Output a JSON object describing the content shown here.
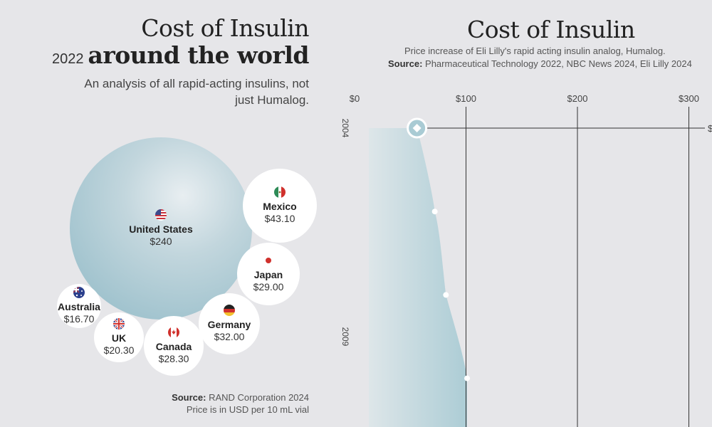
{
  "left": {
    "title_line1": "Cost of Insulin",
    "title_year": "2022",
    "title_line2": "around the world",
    "subtitle": "An analysis of all rapid-acting insulins, not just Humalog.",
    "source_label": "Source:",
    "source_value": "RAND Corporation 2024",
    "note": "Price is in USD per 10 mL vial"
  },
  "right": {
    "title": "Cost of Insulin",
    "subtitle": "Price increase of Eli Lilly's rapid acting insulin analog, Humalog.",
    "source_label": "Source:",
    "source_value": "Pharmaceutical Technology 2022, NBC News 2024, Eli Lilly 2024"
  },
  "colors": {
    "background": "#e6e6e9",
    "us_bubble": "#8fb9c6",
    "bubble": "#ffffff",
    "area_fill": "#a9cbd4",
    "grid": "#333333"
  },
  "chart_data": [
    {
      "type": "bubble",
      "categories": [
        "United States",
        "Mexico",
        "Japan",
        "Germany",
        "Canada",
        "UK",
        "Australia"
      ],
      "values": [
        240,
        43.1,
        29.0,
        32.0,
        28.3,
        20.3,
        16.7
      ],
      "labels": [
        "$240",
        "$43.10",
        "$29.00",
        "$32.00",
        "$28.30",
        "$20.30",
        "$16.70"
      ],
      "flags": [
        "us-flag-icon",
        "mexico-flag-icon",
        "japan-flag-icon",
        "germany-flag-icon",
        "canada-flag-icon",
        "uk-flag-icon",
        "australia-flag-icon"
      ]
    },
    {
      "type": "area",
      "orientation": "horizontal",
      "x_ticks": [
        "$0",
        "$100",
        "$200",
        "$300"
      ],
      "x_tick_values": [
        0,
        100,
        200,
        300
      ],
      "y_ticks": [
        "2004",
        "2009"
      ],
      "y_tick_values": [
        2004,
        2009
      ],
      "points": [
        {
          "year": 2004,
          "price": 56
        },
        {
          "year": 2006,
          "price": 72
        },
        {
          "year": 2008,
          "price": 82
        },
        {
          "year": 2010,
          "price": 101
        }
      ],
      "highlight_year": 2004,
      "cut_label": "$"
    }
  ]
}
